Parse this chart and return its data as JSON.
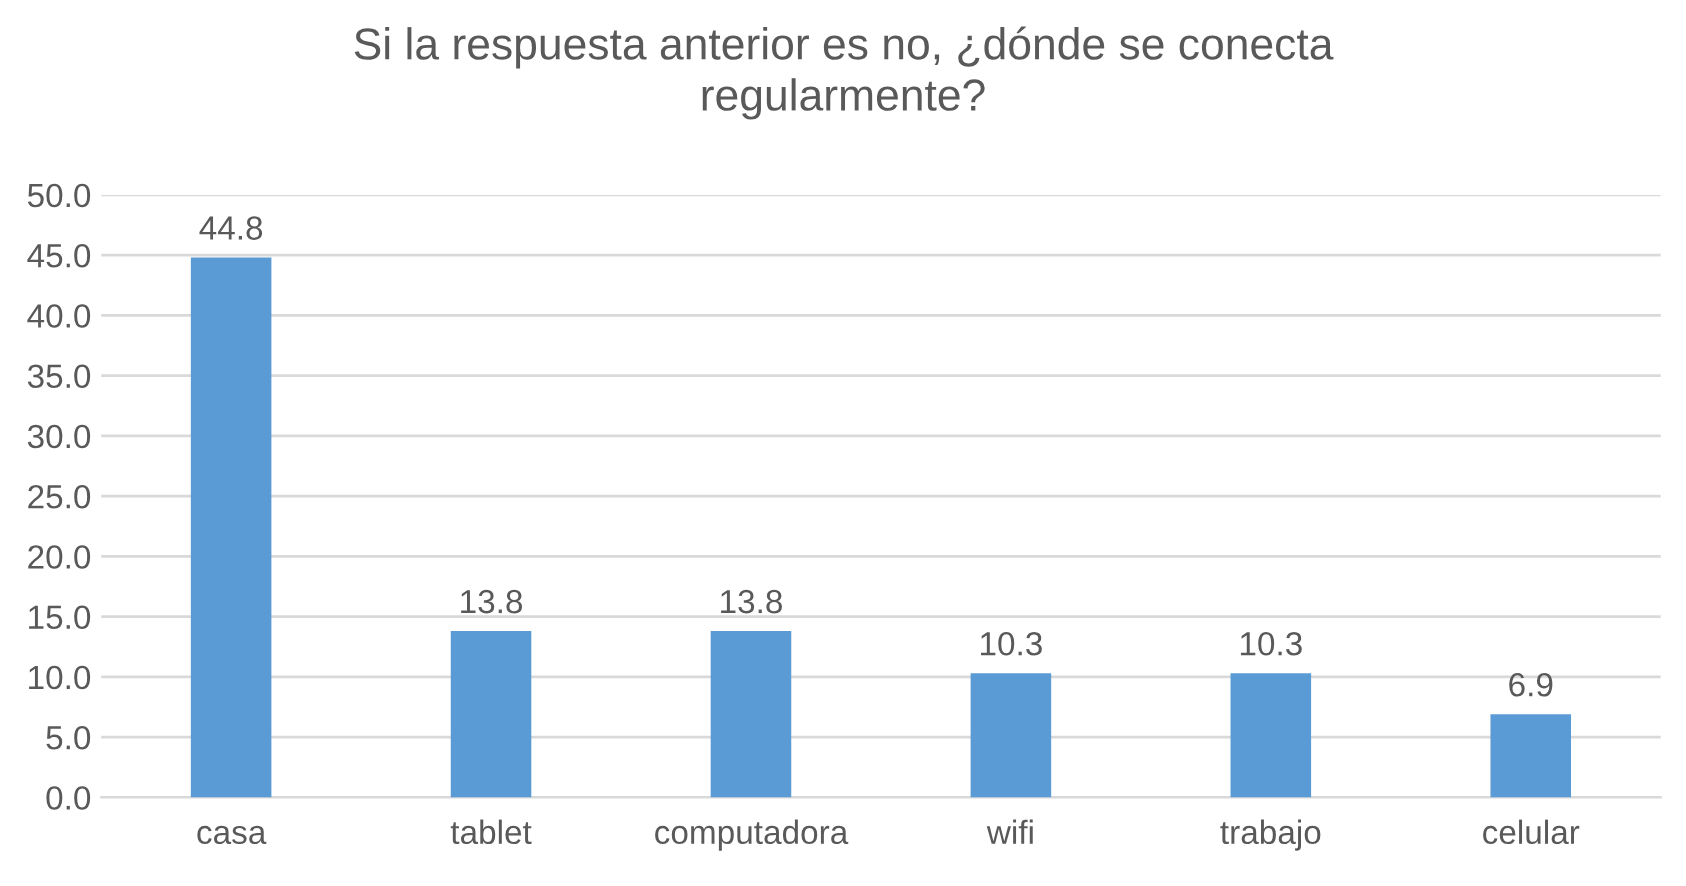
{
  "chart_data": {
    "type": "bar",
    "title": "Si la respuesta anterior es no, ¿dónde se conecta\nregularmente?",
    "categories": [
      "casa",
      "tablet",
      "computadora",
      "wifi",
      "trabajo",
      "celular"
    ],
    "values": [
      44.8,
      13.8,
      13.8,
      10.3,
      10.3,
      6.9
    ],
    "color": "#5b9bd5",
    "ylim": [
      0,
      50
    ],
    "yticks": [
      {
        "value": 0,
        "label": "0.0"
      },
      {
        "value": 5,
        "label": "5.0"
      },
      {
        "value": 10,
        "label": "10.0"
      },
      {
        "value": 15,
        "label": "15.0"
      },
      {
        "value": 20,
        "label": "20.0"
      },
      {
        "value": 25,
        "label": "25.0"
      },
      {
        "value": 30,
        "label": "30.0"
      },
      {
        "value": 35,
        "label": "35.0"
      },
      {
        "value": 40,
        "label": "40.0"
      },
      {
        "value": 45,
        "label": "45.0"
      },
      {
        "value": 50,
        "label": "50.0"
      }
    ],
    "grid": "y",
    "data_labels": true
  }
}
